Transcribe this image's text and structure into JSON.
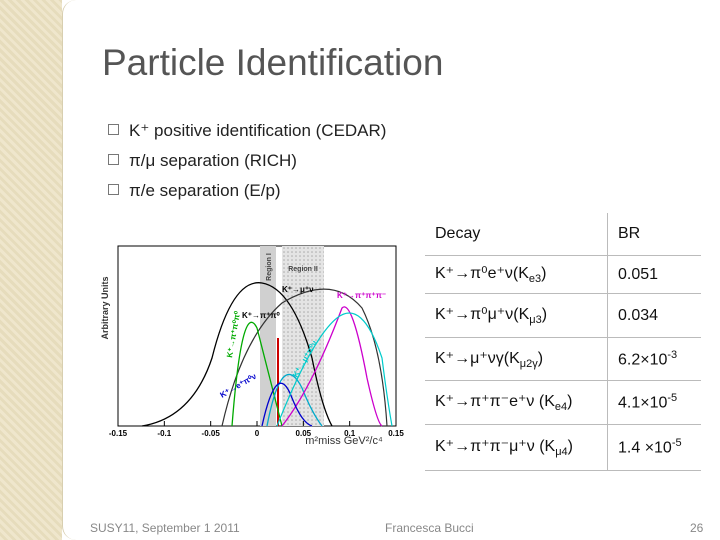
{
  "title": "Particle Identification",
  "bullets": [
    "K⁺ positive identification (CEDAR)",
    "π/μ separation (RICH)",
    "π/e separation (E/p)"
  ],
  "plot": {
    "y_label": "Arbitrary Units",
    "x_label": "m²miss GeV²/c⁴",
    "x_ticks": [
      "-0.15",
      "-0.1",
      "-0.05",
      "0",
      "0.05",
      "0.1",
      "0.15"
    ],
    "regions": [
      "Region I",
      "Region II"
    ],
    "curve_labels": [
      "K⁺→μ⁺ν",
      "K⁺→π⁺π⁰",
      "K⁺→π⁺π⁺π⁻",
      "K⁺→π⁺π⁰π⁰",
      "K⁺→e⁺π⁰ν",
      "K⁺→μ⁺π⁰ν"
    ]
  },
  "table": {
    "header": [
      "Decay",
      "BR"
    ],
    "rows": [
      [
        [
          {
            "text": "K⁺→π⁰e⁺ν(K"
          },
          {
            "text": "e3",
            "pos": "sub"
          },
          {
            "text": ")"
          }
        ],
        [
          {
            "text": "0.051"
          }
        ]
      ],
      [
        [
          {
            "text": "K⁺→π⁰μ⁺ν(K"
          },
          {
            "text": "μ3",
            "pos": "sub"
          },
          {
            "text": ")"
          }
        ],
        [
          {
            "text": "0.034"
          }
        ]
      ],
      [
        [
          {
            "text": "K⁺→μ⁺νγ(K"
          },
          {
            "text": "μ2γ",
            "pos": "sub"
          },
          {
            "text": ")"
          }
        ],
        [
          {
            "text": "6.2×10"
          },
          {
            "text": "-3",
            "pos": "sup"
          }
        ]
      ],
      [
        [
          {
            "text": "K⁺→π⁺π⁻e⁺ν (K"
          },
          {
            "text": "e4",
            "pos": "sub"
          },
          {
            "text": ")"
          }
        ],
        [
          {
            "text": "4.1×10"
          },
          {
            "text": "-5",
            "pos": "sup"
          }
        ]
      ],
      [
        [
          {
            "text": "K⁺→π⁺π⁻μ⁺ν (K"
          },
          {
            "text": "μ4",
            "pos": "sub"
          },
          {
            "text": ")"
          }
        ],
        [
          {
            "text": "1.4 ×10"
          },
          {
            "text": "-5",
            "pos": "sup"
          }
        ]
      ]
    ]
  },
  "footer": {
    "left": "SUSY11, September 1 2011",
    "center": "Francesca Bucci",
    "right": "26"
  }
}
